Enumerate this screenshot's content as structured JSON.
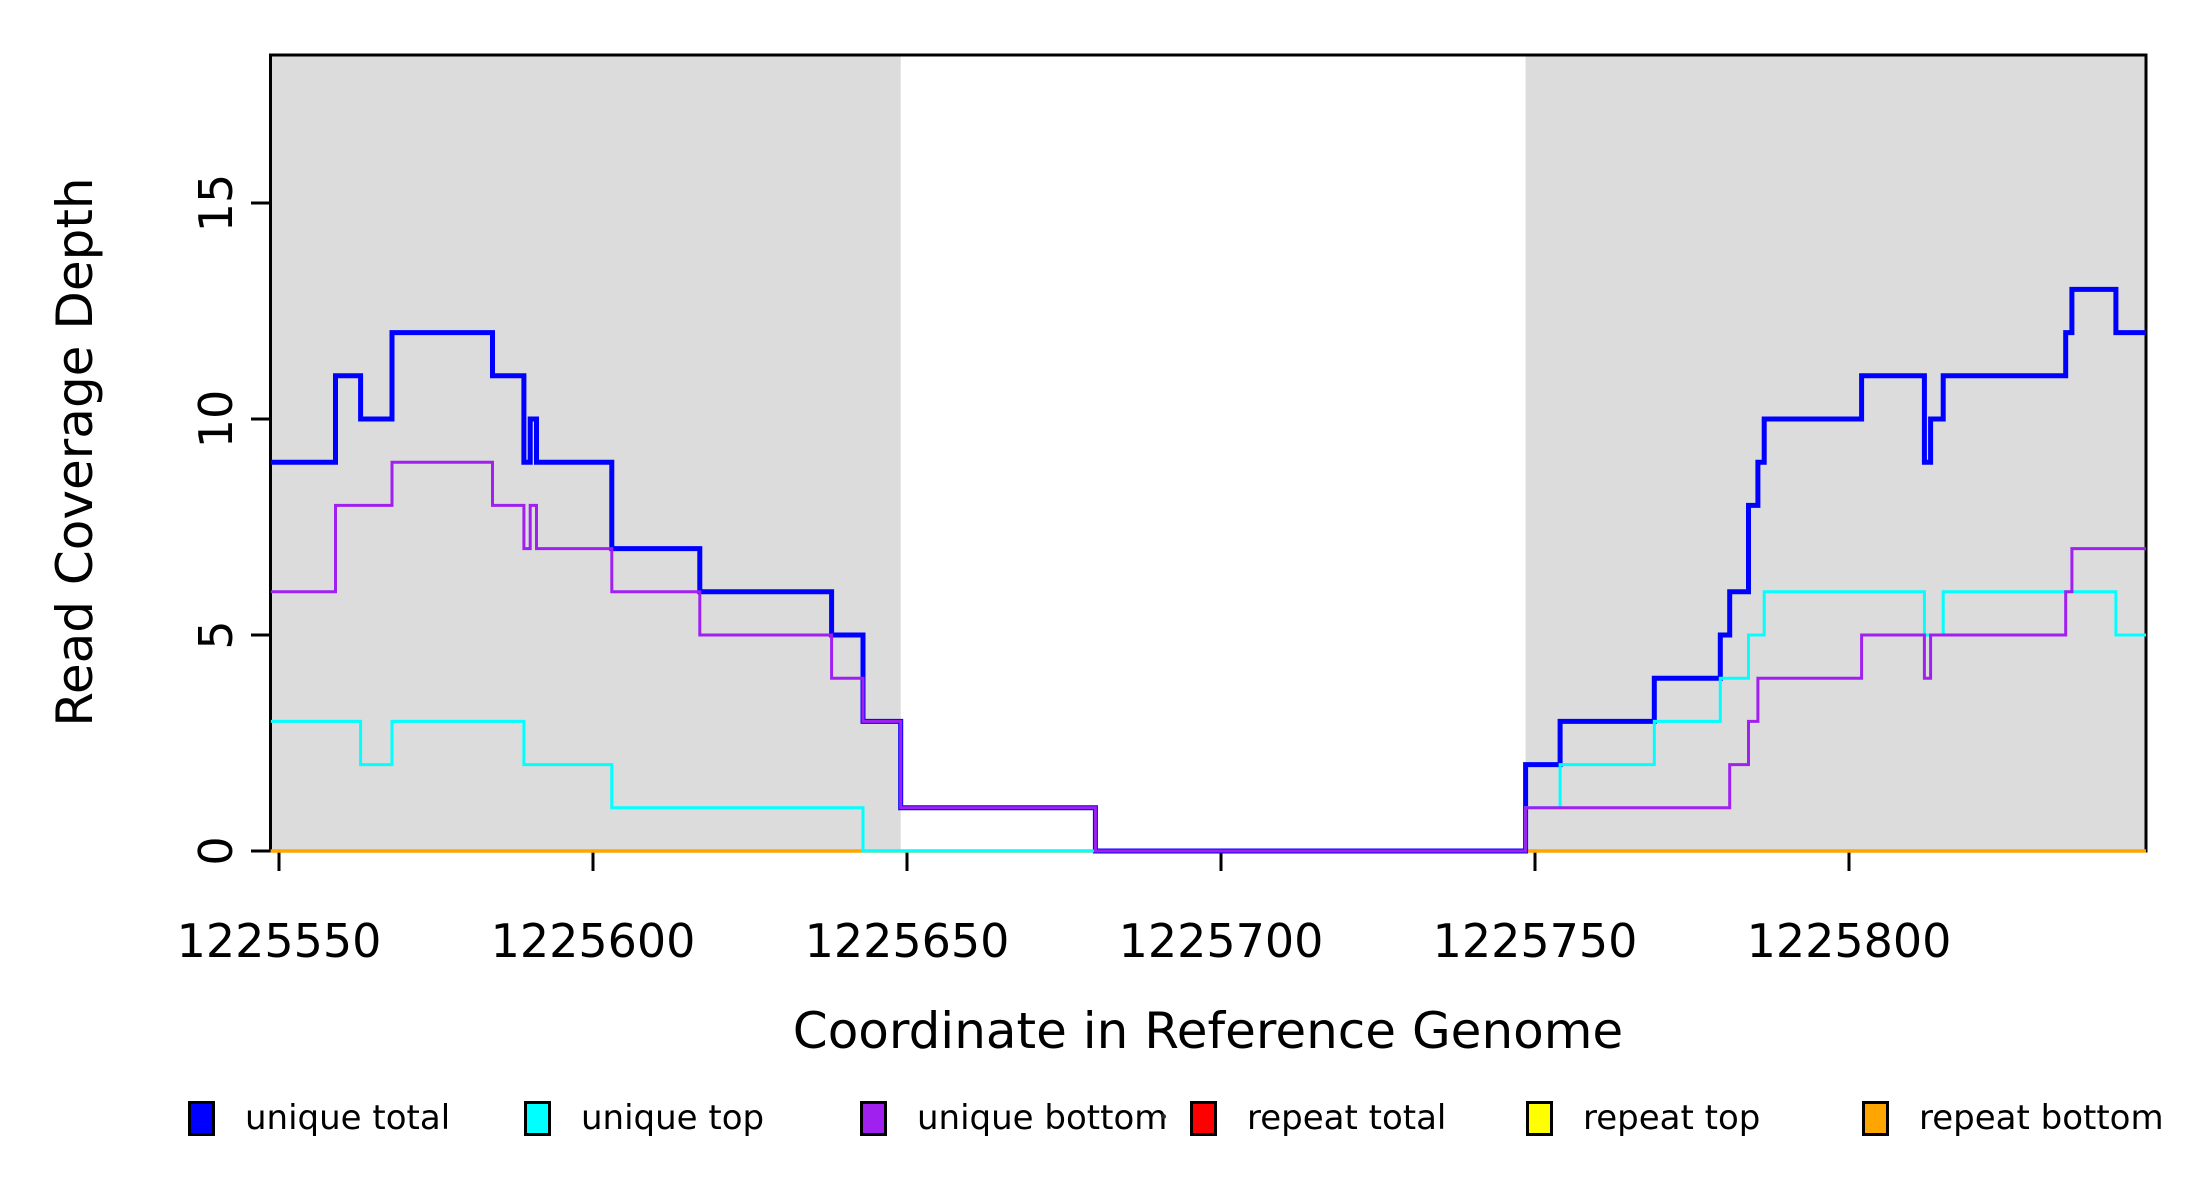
{
  "chart_data": {
    "type": "line",
    "subtype": "step-coverage",
    "title": "",
    "xlabel": "Coordinate in Reference Genome",
    "ylabel": "Read Coverage Depth",
    "xlim": [
      1225548.7,
      1225847.3
    ],
    "ylim": [
      0,
      18.4
    ],
    "grid": "off",
    "background_color": "#ffffff",
    "plot_border_color": "#000000",
    "x_ticks": [
      {
        "value": 1225550,
        "label": "1225550"
      },
      {
        "value": 1225600,
        "label": "1225600"
      },
      {
        "value": 1225650,
        "label": "1225650"
      },
      {
        "value": 1225700,
        "label": "1225700"
      },
      {
        "value": 1225750,
        "label": "1225750"
      },
      {
        "value": 1225800,
        "label": "1225800"
      }
    ],
    "y_ticks": [
      {
        "value": 0,
        "label": "0"
      },
      {
        "value": 5,
        "label": "5"
      },
      {
        "value": 10,
        "label": "10"
      },
      {
        "value": 15,
        "label": "15"
      }
    ],
    "shaded_regions": [
      {
        "name": "left-gray-region",
        "from": 1225548.7,
        "to": 1225649,
        "color": "#DCDCDC"
      },
      {
        "name": "right-gray-region",
        "from": 1225748.5,
        "to": 1225847.3,
        "color": "#DCDCDC"
      }
    ],
    "series": [
      {
        "name": "repeat total",
        "color": "#FF0000",
        "line_width": 3,
        "steps": [
          [
            1225548.7,
            0
          ]
        ]
      },
      {
        "name": "repeat top",
        "color": "#FFFF00",
        "line_width": 3,
        "steps": [
          [
            1225548.7,
            0
          ]
        ]
      },
      {
        "name": "repeat bottom",
        "color": "#FFA500",
        "line_width": 3.5,
        "steps": [
          [
            1225548.7,
            0
          ]
        ]
      },
      {
        "name": "unique total",
        "color": "#0000FF",
        "line_width": 5,
        "steps": [
          [
            1225548.7,
            9
          ],
          [
            1225559,
            11
          ],
          [
            1225563,
            10
          ],
          [
            1225568,
            12
          ],
          [
            1225584,
            11
          ],
          [
            1225589,
            9
          ],
          [
            1225590,
            10
          ],
          [
            1225591,
            9
          ],
          [
            1225603,
            7
          ],
          [
            1225617,
            6
          ],
          [
            1225638,
            5
          ],
          [
            1225643,
            3
          ],
          [
            1225649,
            1
          ],
          [
            1225680,
            0
          ],
          [
            1225748.5,
            2
          ],
          [
            1225754,
            3
          ],
          [
            1225769,
            4
          ],
          [
            1225779.5,
            5
          ],
          [
            1225781,
            6
          ],
          [
            1225784,
            8
          ],
          [
            1225785.5,
            9
          ],
          [
            1225786.5,
            10
          ],
          [
            1225802,
            11
          ],
          [
            1225812,
            9
          ],
          [
            1225813,
            10
          ],
          [
            1225815,
            11
          ],
          [
            1225834.5,
            12
          ],
          [
            1225835.5,
            13
          ],
          [
            1225842.5,
            12
          ]
        ]
      },
      {
        "name": "unique top",
        "color": "#00FFFF",
        "line_width": 3,
        "steps": [
          [
            1225548.7,
            3
          ],
          [
            1225563,
            2
          ],
          [
            1225568,
            3
          ],
          [
            1225589,
            2
          ],
          [
            1225603,
            1
          ],
          [
            1225643,
            0
          ],
          [
            1225748.5,
            1
          ],
          [
            1225754,
            2
          ],
          [
            1225769,
            3
          ],
          [
            1225779.5,
            4
          ],
          [
            1225784,
            5
          ],
          [
            1225786.5,
            6
          ],
          [
            1225812,
            5
          ],
          [
            1225815,
            6
          ],
          [
            1225842.5,
            5
          ]
        ]
      },
      {
        "name": "unique bottom",
        "color": "#A020F0",
        "line_width": 3,
        "steps": [
          [
            1225548.7,
            6
          ],
          [
            1225559,
            8
          ],
          [
            1225568,
            9
          ],
          [
            1225584,
            8
          ],
          [
            1225589,
            7
          ],
          [
            1225590,
            8
          ],
          [
            1225591,
            7
          ],
          [
            1225603,
            6
          ],
          [
            1225617,
            5
          ],
          [
            1225638,
            4
          ],
          [
            1225643,
            3
          ],
          [
            1225649,
            1
          ],
          [
            1225680,
            0
          ],
          [
            1225748.5,
            1
          ],
          [
            1225781,
            2
          ],
          [
            1225784,
            3
          ],
          [
            1225785.5,
            4
          ],
          [
            1225802,
            5
          ],
          [
            1225812,
            4
          ],
          [
            1225813,
            5
          ],
          [
            1225834.5,
            6
          ],
          [
            1225835.5,
            7
          ]
        ]
      }
    ],
    "legend": {
      "position": "bottom",
      "entries": [
        {
          "label": "unique total",
          "color": "#0000FF"
        },
        {
          "label": "unique top",
          "color": "#00FFFF"
        },
        {
          "label": "unique bottom",
          "color": "#A020F0"
        },
        {
          "label": "repeat total",
          "color": "#FF0000"
        },
        {
          "label": "repeat top",
          "color": "#FFFF00"
        },
        {
          "label": "repeat bottom",
          "color": "#FFA500"
        }
      ]
    }
  },
  "layout_note_values": {
    "ylabel_text": "Read Coverage Depth",
    "xlabel_text": "Coordinate in Reference Genome"
  }
}
